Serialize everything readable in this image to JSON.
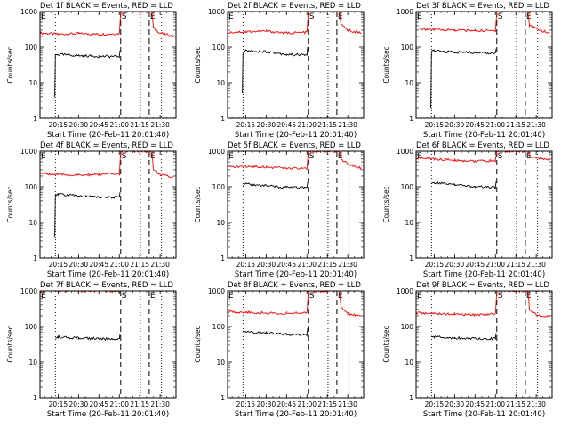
{
  "figure": {
    "panels": [
      {
        "title": "Det 1f BLACK = Events, RED = LLD",
        "xlabel": "Start Time (20-Feb-11 20:01:40)",
        "ylabel": "Counts/sec"
      },
      {
        "title": "Det 2f BLACK = Events, RED = LLD",
        "xlabel": "Start Time (20-Feb-11 20:01:40)",
        "ylabel": "Counts/sec"
      },
      {
        "title": "Det 3f BLACK = Events, RED = LLD",
        "xlabel": "Start Time (20-Feb-11 20:01:40)",
        "ylabel": "Counts/sec"
      },
      {
        "title": "Det 4f BLACK = Events, RED = LLD",
        "xlabel": "Start Time (20-Feb-11 20:01:40)",
        "ylabel": "Counts/sec"
      },
      {
        "title": "Det 5f BLACK = Events, RED = LLD",
        "xlabel": "Start Time (20-Feb-11 20:01:40)",
        "ylabel": "Counts/sec"
      },
      {
        "title": "Det 6f BLACK = Events, RED = LLD",
        "xlabel": "Start Time (20-Feb-11 20:01:40)",
        "ylabel": "Counts/sec"
      },
      {
        "title": "Det 7f BLACK = Events, RED = LLD",
        "xlabel": "Start Time (20-Feb-11 20:01:40)",
        "ylabel": "Counts/sec"
      },
      {
        "title": "Det 8f BLACK = Events, RED = LLD",
        "xlabel": "Start Time (20-Feb-11 20:01:40)",
        "ylabel": "Counts/sec"
      },
      {
        "title": "Det 9f BLACK = Events, RED = LLD",
        "xlabel": "Start Time (20-Feb-11 20:01:40)",
        "ylabel": "Counts/sec"
      }
    ]
  },
  "chart_data": {
    "type": "line",
    "layout": "3x3 grid",
    "x_unit": "time of day (HH:MM) on 20-Feb-11",
    "xlim": [
      "20:01:40",
      "21:41:40"
    ],
    "x_ticks": [
      "20:15",
      "20:30",
      "20:45",
      "21:00",
      "21:15",
      "21:30"
    ],
    "y_scale": "log",
    "ylim": [
      1,
      1000
    ],
    "y_ticks": [
      "1",
      "10",
      "100",
      "1000"
    ],
    "grid": false,
    "colors": {
      "events": "#000000",
      "lld": "#ff0000",
      "axes": "#000000"
    },
    "markers": [
      {
        "label": "E",
        "time": "20:01:40",
        "style": "dashed"
      },
      {
        "label": "S",
        "time": "21:01:00",
        "style": "dashed"
      },
      {
        "label": "E",
        "time": "21:22:00",
        "style": "dashed"
      }
    ],
    "dotted_lines": [
      "20:13:00",
      "21:15:30",
      "21:31:00"
    ],
    "panels": [
      {
        "series": [
          {
            "color": "#ff0000",
            "points": [
              [
                "20:01:40",
                250
              ],
              [
                "20:15:00",
                230
              ],
              [
                "20:30:00",
                240
              ],
              [
                "20:45:00",
                230
              ],
              [
                "21:00:00",
                240
              ],
              [
                "21:01:00",
                1000
              ],
              [
                "21:24:00",
                1000
              ],
              [
                "21:25:00",
                350
              ],
              [
                "21:30:00",
                250
              ],
              [
                "21:40:00",
                200
              ]
            ]
          },
          {
            "color": "#000000",
            "points": [
              [
                "20:12:30",
                4
              ],
              [
                "20:13:00",
                60
              ],
              [
                "20:15:00",
                62
              ],
              [
                "20:30:00",
                58
              ],
              [
                "20:45:00",
                55
              ],
              [
                "21:00:00",
                55
              ],
              [
                "21:00:30",
                80
              ]
            ]
          }
        ]
      },
      {
        "series": [
          {
            "color": "#ff0000",
            "points": [
              [
                "20:01:40",
                260
              ],
              [
                "20:15:00",
                270
              ],
              [
                "20:30:00",
                280
              ],
              [
                "20:45:00",
                250
              ],
              [
                "21:00:00",
                260
              ],
              [
                "21:01:00",
                1000
              ],
              [
                "21:24:00",
                1000
              ],
              [
                "21:25:00",
                420
              ],
              [
                "21:30:00",
                300
              ],
              [
                "21:40:00",
                250
              ]
            ]
          },
          {
            "color": "#000000",
            "points": [
              [
                "20:12:30",
                5
              ],
              [
                "20:13:00",
                70
              ],
              [
                "20:15:00",
                80
              ],
              [
                "20:30:00",
                75
              ],
              [
                "20:45:00",
                62
              ],
              [
                "21:00:00",
                60
              ],
              [
                "21:00:30",
                100
              ]
            ]
          }
        ]
      },
      {
        "series": [
          {
            "color": "#ff0000",
            "points": [
              [
                "20:01:40",
                330
              ],
              [
                "20:15:00",
                310
              ],
              [
                "20:30:00",
                300
              ],
              [
                "20:45:00",
                290
              ],
              [
                "21:00:00",
                290
              ],
              [
                "21:01:00",
                1000
              ],
              [
                "21:24:00",
                1000
              ],
              [
                "21:25:00",
                400
              ],
              [
                "21:30:00",
                330
              ],
              [
                "21:40:00",
                240
              ]
            ]
          },
          {
            "color": "#000000",
            "points": [
              [
                "20:12:30",
                2
              ],
              [
                "20:13:00",
                75
              ],
              [
                "20:15:00",
                78
              ],
              [
                "20:30:00",
                72
              ],
              [
                "20:45:00",
                70
              ],
              [
                "21:00:00",
                68
              ],
              [
                "21:00:30",
                90
              ]
            ]
          }
        ]
      },
      {
        "series": [
          {
            "color": "#ff0000",
            "points": [
              [
                "20:01:40",
                240
              ],
              [
                "20:15:00",
                220
              ],
              [
                "20:30:00",
                210
              ],
              [
                "20:45:00",
                220
              ],
              [
                "21:00:00",
                230
              ],
              [
                "21:01:00",
                1000
              ],
              [
                "21:24:00",
                1000
              ],
              [
                "21:25:00",
                300
              ],
              [
                "21:30:00",
                220
              ],
              [
                "21:40:00",
                180
              ]
            ]
          },
          {
            "color": "#000000",
            "points": [
              [
                "20:12:30",
                4
              ],
              [
                "20:13:00",
                60
              ],
              [
                "20:15:00",
                62
              ],
              [
                "20:30:00",
                55
              ],
              [
                "20:45:00",
                52
              ],
              [
                "21:00:00",
                50
              ],
              [
                "21:00:30",
                70
              ]
            ]
          }
        ]
      },
      {
        "series": [
          {
            "color": "#ff0000",
            "points": [
              [
                "20:01:40",
                350
              ],
              [
                "20:15:00",
                380
              ],
              [
                "20:30:00",
                360
              ],
              [
                "20:45:00",
                330
              ],
              [
                "21:00:00",
                320
              ],
              [
                "21:01:00",
                1000
              ],
              [
                "21:24:00",
                1000
              ],
              [
                "21:25:00",
                600
              ],
              [
                "21:30:00",
                450
              ],
              [
                "21:40:00",
                330
              ]
            ]
          },
          {
            "color": "#000000",
            "points": [
              [
                "20:13:00",
                110
              ],
              [
                "20:15:00",
                120
              ],
              [
                "20:30:00",
                105
              ],
              [
                "20:45:00",
                95
              ],
              [
                "21:00:00",
                95
              ],
              [
                "21:00:30",
                130
              ]
            ]
          }
        ]
      },
      {
        "series": [
          {
            "color": "#ff0000",
            "points": [
              [
                "20:01:40",
                650
              ],
              [
                "20:15:00",
                600
              ],
              [
                "20:30:00",
                560
              ],
              [
                "20:45:00",
                520
              ],
              [
                "21:00:00",
                540
              ],
              [
                "21:01:00",
                1000
              ],
              [
                "21:24:00",
                1000
              ],
              [
                "21:25:00",
                750
              ],
              [
                "21:30:00",
                650
              ],
              [
                "21:40:00",
                560
              ]
            ]
          },
          {
            "color": "#000000",
            "points": [
              [
                "20:13:00",
                120
              ],
              [
                "20:15:00",
                130
              ],
              [
                "20:30:00",
                115
              ],
              [
                "20:45:00",
                100
              ],
              [
                "21:00:00",
                95
              ],
              [
                "21:00:30",
                140
              ]
            ]
          }
        ]
      },
      {
        "series": [
          {
            "color": "#ff0000",
            "points": [
              [
                "20:01:40",
                1000
              ],
              [
                "20:15:00",
                1000
              ],
              [
                "20:30:00",
                1000
              ],
              [
                "20:45:00",
                1000
              ],
              [
                "21:00:00",
                1000
              ]
            ]
          },
          {
            "color": "#000000",
            "points": [
              [
                "20:13:00",
                48
              ],
              [
                "20:15:00",
                50
              ],
              [
                "20:30:00",
                48
              ],
              [
                "20:45:00",
                45
              ],
              [
                "21:00:00",
                45
              ],
              [
                "21:00:30",
                60
              ]
            ]
          }
        ]
      },
      {
        "series": [
          {
            "color": "#ff0000",
            "points": [
              [
                "20:01:40",
                260
              ],
              [
                "20:15:00",
                250
              ],
              [
                "20:30:00",
                240
              ],
              [
                "20:45:00",
                230
              ],
              [
                "21:00:00",
                240
              ],
              [
                "21:01:00",
                1000
              ],
              [
                "21:24:00",
                1000
              ],
              [
                "21:25:00",
                350
              ],
              [
                "21:30:00",
                230
              ],
              [
                "21:40:00",
                200
              ]
            ]
          },
          {
            "color": "#000000",
            "points": [
              [
                "20:13:00",
                65
              ],
              [
                "20:15:00",
                70
              ],
              [
                "20:30:00",
                65
              ],
              [
                "20:45:00",
                60
              ],
              [
                "21:00:00",
                58
              ],
              [
                "21:00:30",
                90
              ]
            ]
          }
        ]
      },
      {
        "series": [
          {
            "color": "#ff0000",
            "points": [
              [
                "20:01:40",
                240
              ],
              [
                "20:15:00",
                230
              ],
              [
                "20:30:00",
                220
              ],
              [
                "20:45:00",
                210
              ],
              [
                "21:00:00",
                230
              ],
              [
                "21:01:00",
                1000
              ],
              [
                "21:24:00",
                1000
              ],
              [
                "21:25:00",
                300
              ],
              [
                "21:30:00",
                210
              ],
              [
                "21:40:00",
                190
              ]
            ]
          },
          {
            "color": "#000000",
            "points": [
              [
                "20:13:00",
                50
              ],
              [
                "20:15:00",
                52
              ],
              [
                "20:30:00",
                48
              ],
              [
                "20:45:00",
                46
              ],
              [
                "21:00:00",
                46
              ],
              [
                "21:00:30",
                65
              ]
            ]
          }
        ]
      }
    ]
  }
}
